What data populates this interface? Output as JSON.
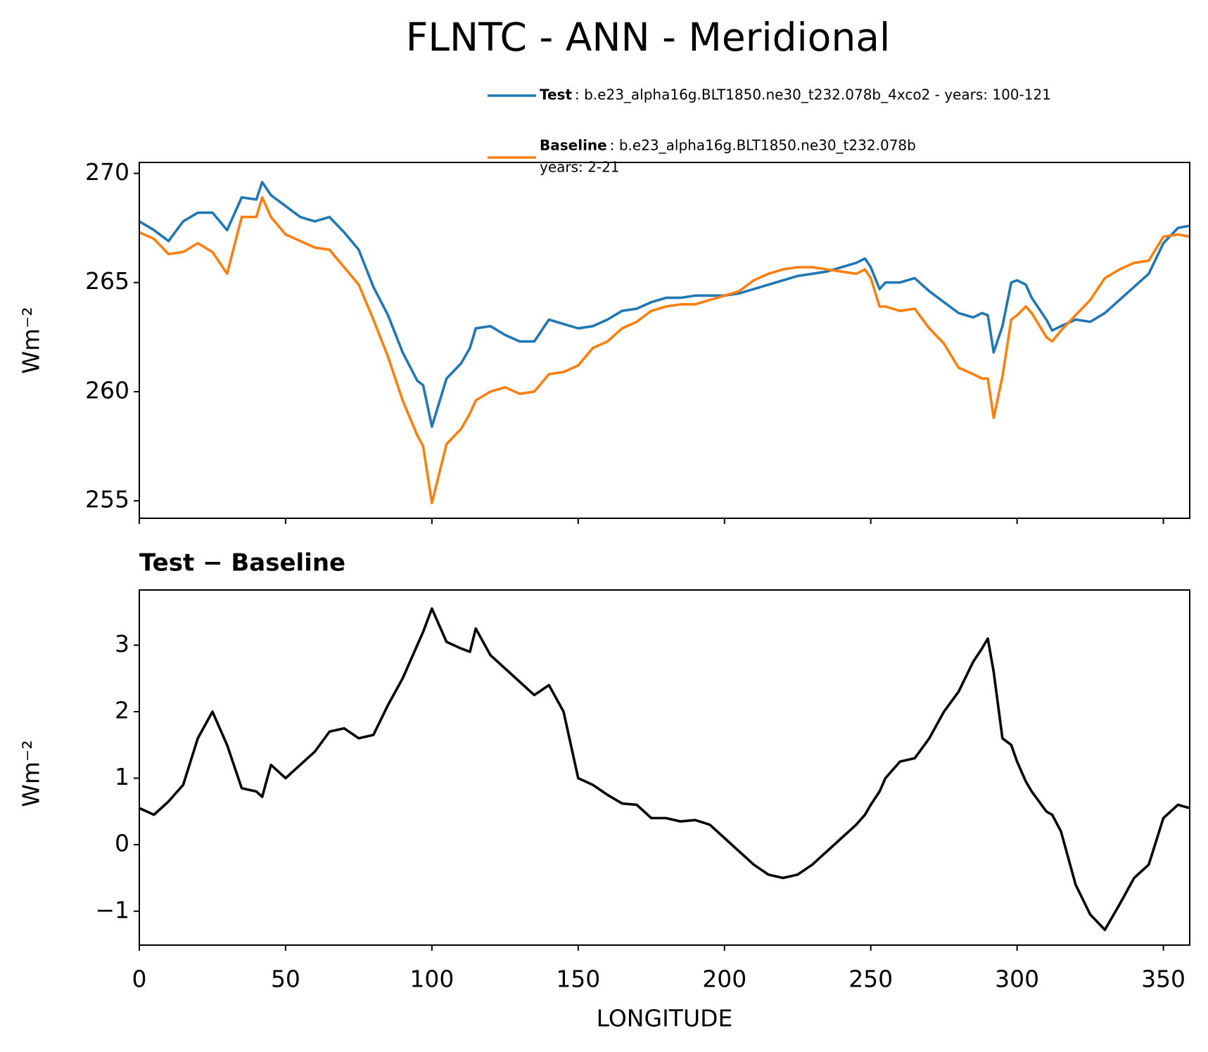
{
  "chart_data": [
    {
      "type": "line",
      "title": "FLNTC - ANN - Meridional",
      "ylabel": "Wm⁻²",
      "show_xtick_labels": false,
      "x": [
        0,
        5,
        10,
        15,
        20,
        25,
        30,
        35,
        40,
        42,
        45,
        50,
        55,
        60,
        65,
        70,
        75,
        80,
        85,
        90,
        95,
        97,
        100,
        105,
        110,
        113,
        115,
        120,
        125,
        130,
        135,
        140,
        145,
        150,
        155,
        160,
        165,
        170,
        175,
        180,
        185,
        190,
        195,
        200,
        205,
        210,
        215,
        220,
        225,
        230,
        235,
        240,
        245,
        248,
        250,
        253,
        255,
        260,
        265,
        270,
        275,
        280,
        285,
        288,
        290,
        292,
        295,
        298,
        300,
        303,
        305,
        310,
        312,
        315,
        320,
        325,
        330,
        335,
        340,
        345,
        350,
        355,
        359
      ],
      "series": [
        {
          "name": "Test",
          "description": [
            ": b.e23_alpha16g.BLT1850.ne30_t232.078b_4xco2 - years: 100-121"
          ],
          "color": "#1f77b4",
          "values": [
            267.8,
            267.4,
            266.9,
            267.8,
            268.2,
            268.2,
            267.4,
            268.9,
            268.8,
            269.6,
            269.0,
            268.5,
            268.0,
            267.8,
            268.0,
            267.3,
            266.5,
            264.8,
            263.5,
            261.8,
            260.5,
            260.3,
            258.4,
            260.6,
            261.3,
            262.0,
            262.9,
            263.0,
            262.6,
            262.3,
            262.3,
            263.3,
            263.1,
            262.9,
            263.0,
            263.3,
            263.7,
            263.8,
            264.1,
            264.3,
            264.3,
            264.4,
            264.4,
            264.4,
            264.5,
            264.7,
            264.9,
            265.1,
            265.3,
            265.4,
            265.5,
            265.7,
            265.9,
            266.1,
            265.7,
            264.7,
            265.0,
            265.0,
            265.2,
            264.6,
            264.1,
            263.6,
            263.4,
            263.6,
            263.5,
            261.8,
            263.0,
            265.0,
            265.1,
            264.9,
            264.3,
            263.3,
            262.8,
            263.0,
            263.3,
            263.2,
            263.6,
            264.2,
            264.8,
            265.4,
            266.8,
            267.5,
            267.6
          ]
        },
        {
          "name": "Baseline",
          "description": [
            ": b.e23_alpha16g.BLT1850.ne30_t232.078b",
            "years: 2-21"
          ],
          "color": "#ff7f0e",
          "values": [
            267.3,
            267.0,
            266.3,
            266.4,
            266.8,
            266.4,
            265.4,
            268.0,
            268.0,
            268.9,
            268.0,
            267.2,
            266.9,
            266.6,
            266.5,
            265.7,
            264.9,
            263.3,
            261.6,
            259.6,
            258.0,
            257.5,
            254.9,
            257.6,
            258.3,
            259.0,
            259.6,
            260.0,
            260.2,
            259.9,
            260.0,
            260.8,
            260.9,
            261.2,
            262.0,
            262.3,
            262.9,
            263.2,
            263.7,
            263.9,
            264.0,
            264.0,
            264.2,
            264.4,
            264.6,
            265.1,
            265.4,
            265.6,
            265.7,
            265.7,
            265.6,
            265.5,
            265.4,
            265.6,
            265.2,
            263.9,
            263.9,
            263.7,
            263.8,
            262.9,
            262.2,
            261.1,
            260.8,
            260.6,
            260.6,
            258.8,
            260.7,
            263.3,
            263.5,
            263.9,
            263.6,
            262.5,
            262.3,
            262.8,
            263.5,
            264.2,
            265.2,
            265.6,
            265.9,
            266.0,
            267.1,
            267.2,
            267.1
          ]
        }
      ],
      "xlim": [
        0,
        359
      ],
      "xticks": [
        0,
        50,
        100,
        150,
        200,
        250,
        300,
        350
      ],
      "ylim": [
        254.2,
        270.5
      ],
      "yticks": [
        255,
        260,
        265,
        270
      ]
    },
    {
      "type": "line",
      "title": "Test − Baseline",
      "ylabel": "Wm⁻²",
      "xlabel": "LONGITUDE",
      "show_xtick_labels": true,
      "x": [
        0,
        5,
        10,
        15,
        20,
        25,
        30,
        35,
        40,
        42,
        45,
        50,
        55,
        60,
        65,
        70,
        75,
        80,
        85,
        90,
        95,
        97,
        100,
        105,
        110,
        113,
        115,
        120,
        125,
        130,
        135,
        140,
        145,
        150,
        155,
        160,
        165,
        170,
        175,
        180,
        185,
        190,
        195,
        200,
        205,
        210,
        215,
        220,
        225,
        230,
        235,
        240,
        245,
        248,
        250,
        253,
        255,
        260,
        265,
        270,
        275,
        280,
        285,
        288,
        290,
        292,
        295,
        298,
        300,
        303,
        305,
        310,
        312,
        315,
        320,
        325,
        330,
        335,
        340,
        345,
        350,
        355,
        359
      ],
      "series": [
        {
          "color": "#000000",
          "values": [
            0.55,
            0.45,
            0.65,
            0.9,
            1.6,
            2.0,
            1.5,
            0.85,
            0.8,
            0.72,
            1.2,
            1.0,
            1.2,
            1.4,
            1.7,
            1.75,
            1.6,
            1.65,
            2.1,
            2.5,
            3.0,
            3.2,
            3.55,
            3.05,
            2.95,
            2.9,
            3.25,
            2.85,
            2.65,
            2.45,
            2.25,
            2.4,
            2.0,
            1.0,
            0.9,
            0.75,
            0.62,
            0.6,
            0.4,
            0.4,
            0.35,
            0.37,
            0.3,
            0.1,
            -0.1,
            -0.3,
            -0.45,
            -0.5,
            -0.45,
            -0.3,
            -0.1,
            0.1,
            0.3,
            0.45,
            0.6,
            0.8,
            1.0,
            1.25,
            1.3,
            1.6,
            2.0,
            2.3,
            2.75,
            2.95,
            3.1,
            2.6,
            1.6,
            1.5,
            1.25,
            0.95,
            0.8,
            0.5,
            0.45,
            0.2,
            -0.6,
            -1.05,
            -1.28,
            -0.9,
            -0.5,
            -0.3,
            0.4,
            0.6,
            0.55
          ]
        }
      ],
      "xlim": [
        0,
        359
      ],
      "xticks": [
        0,
        50,
        100,
        150,
        200,
        250,
        300,
        350
      ],
      "ylim": [
        -1.51,
        3.83
      ],
      "yticks": [
        {
          "value": -1,
          "label": "−1"
        },
        0,
        1,
        2,
        3
      ]
    }
  ]
}
